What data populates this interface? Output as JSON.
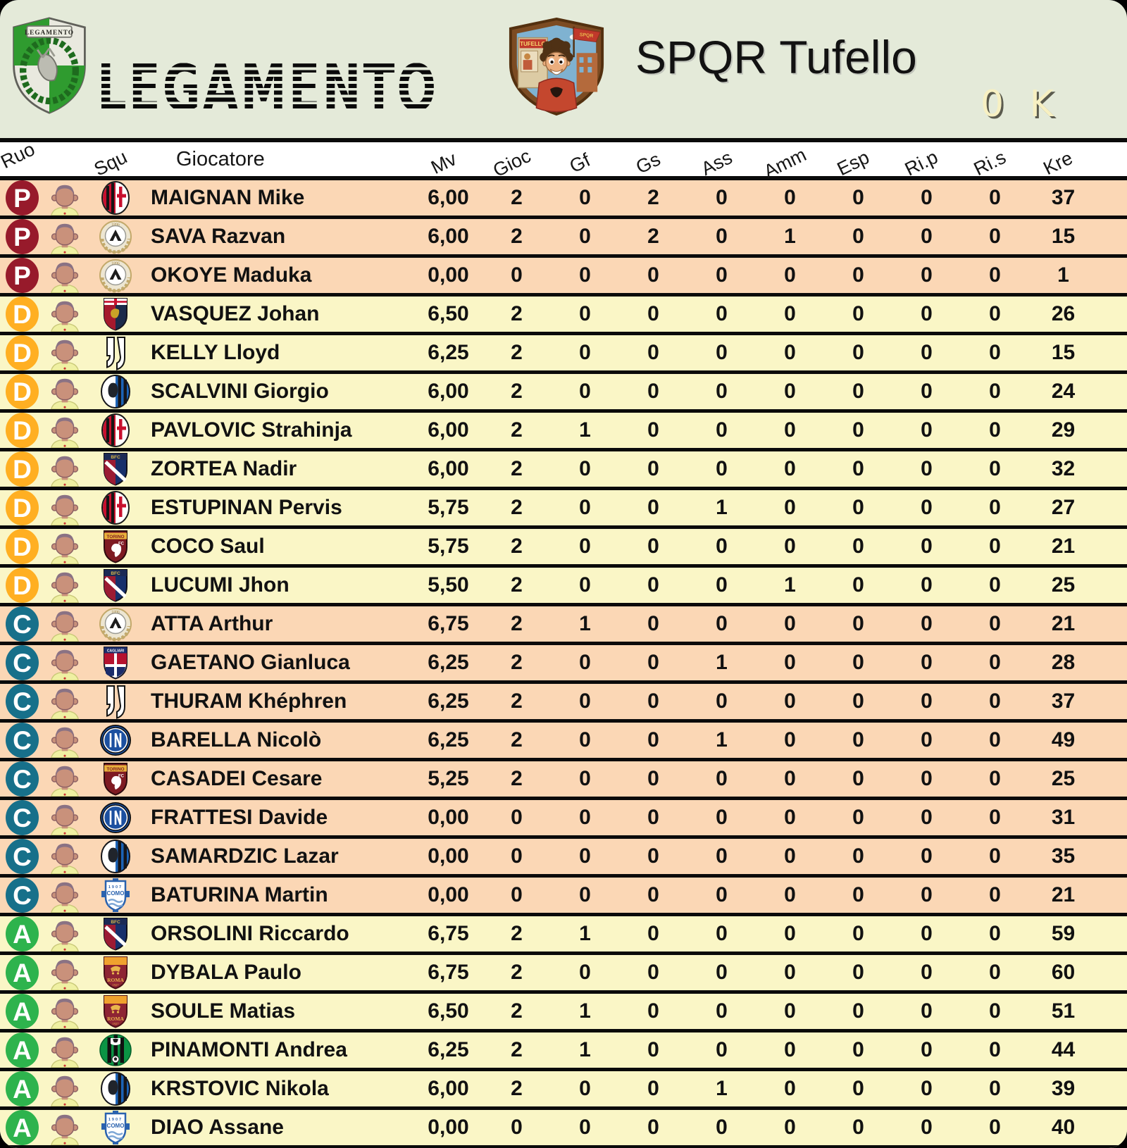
{
  "header": {
    "league_name": "LEGAMENTO",
    "league_crest_banner": "LEGAMENTO",
    "team_name": "SPQR Tufello",
    "credits": "0 K",
    "tufello_sign": "TUFELLO",
    "tufello_flag": "SPQR"
  },
  "colors": {
    "header_bg": "#E4EAD9",
    "row_peach": "#FBD7B5",
    "row_yellow": "#FAF6C6",
    "separator": "#0A0A0A",
    "role_P": "#971A2B",
    "role_D": "#FFAF22",
    "role_C": "#17708A",
    "role_A": "#2EB34D",
    "credits_text": "#F7F0C2"
  },
  "table": {
    "columns": [
      {
        "key": "ruo",
        "label": "Ruo"
      },
      {
        "key": "squ",
        "label": "Squ"
      },
      {
        "key": "giocatore",
        "label": "Giocatore"
      },
      {
        "key": "mv",
        "label": "Mv"
      },
      {
        "key": "gioc",
        "label": "Gioc"
      },
      {
        "key": "gf",
        "label": "Gf"
      },
      {
        "key": "gs",
        "label": "Gs"
      },
      {
        "key": "ass",
        "label": "Ass"
      },
      {
        "key": "amm",
        "label": "Amm"
      },
      {
        "key": "esp",
        "label": "Esp"
      },
      {
        "key": "rip",
        "label": "Ri.p"
      },
      {
        "key": "ris",
        "label": "Ri.s"
      },
      {
        "key": "kre",
        "label": "Kre"
      }
    ],
    "rows": [
      {
        "role": "P",
        "team": "milan",
        "name": "MAIGNAN Mike",
        "mv": "6,00",
        "gioc": "2",
        "gf": "0",
        "gs": "2",
        "ass": "0",
        "amm": "0",
        "esp": "0",
        "rip": "0",
        "ris": "0",
        "kre": "37"
      },
      {
        "role": "P",
        "team": "udinese",
        "name": "SAVA Razvan",
        "mv": "6,00",
        "gioc": "2",
        "gf": "0",
        "gs": "2",
        "ass": "0",
        "amm": "1",
        "esp": "0",
        "rip": "0",
        "ris": "0",
        "kre": "15"
      },
      {
        "role": "P",
        "team": "udinese",
        "name": "OKOYE Maduka",
        "mv": "0,00",
        "gioc": "0",
        "gf": "0",
        "gs": "0",
        "ass": "0",
        "amm": "0",
        "esp": "0",
        "rip": "0",
        "ris": "0",
        "kre": "1"
      },
      {
        "role": "D",
        "team": "genoa",
        "name": "VASQUEZ Johan",
        "mv": "6,50",
        "gioc": "2",
        "gf": "0",
        "gs": "0",
        "ass": "0",
        "amm": "0",
        "esp": "0",
        "rip": "0",
        "ris": "0",
        "kre": "26"
      },
      {
        "role": "D",
        "team": "juventus",
        "name": "KELLY Lloyd",
        "mv": "6,25",
        "gioc": "2",
        "gf": "0",
        "gs": "0",
        "ass": "0",
        "amm": "0",
        "esp": "0",
        "rip": "0",
        "ris": "0",
        "kre": "15"
      },
      {
        "role": "D",
        "team": "atalanta",
        "name": "SCALVINI Giorgio",
        "mv": "6,00",
        "gioc": "2",
        "gf": "0",
        "gs": "0",
        "ass": "0",
        "amm": "0",
        "esp": "0",
        "rip": "0",
        "ris": "0",
        "kre": "24"
      },
      {
        "role": "D",
        "team": "milan",
        "name": "PAVLOVIC Strahinja",
        "mv": "6,00",
        "gioc": "2",
        "gf": "1",
        "gs": "0",
        "ass": "0",
        "amm": "0",
        "esp": "0",
        "rip": "0",
        "ris": "0",
        "kre": "29"
      },
      {
        "role": "D",
        "team": "bologna",
        "name": "ZORTEA Nadir",
        "mv": "6,00",
        "gioc": "2",
        "gf": "0",
        "gs": "0",
        "ass": "0",
        "amm": "0",
        "esp": "0",
        "rip": "0",
        "ris": "0",
        "kre": "32"
      },
      {
        "role": "D",
        "team": "milan",
        "name": "ESTUPINAN Pervis",
        "mv": "5,75",
        "gioc": "2",
        "gf": "0",
        "gs": "0",
        "ass": "1",
        "amm": "0",
        "esp": "0",
        "rip": "0",
        "ris": "0",
        "kre": "27"
      },
      {
        "role": "D",
        "team": "torino",
        "name": "COCO Saul",
        "mv": "5,75",
        "gioc": "2",
        "gf": "0",
        "gs": "0",
        "ass": "0",
        "amm": "0",
        "esp": "0",
        "rip": "0",
        "ris": "0",
        "kre": "21"
      },
      {
        "role": "D",
        "team": "bologna",
        "name": "LUCUMI Jhon",
        "mv": "5,50",
        "gioc": "2",
        "gf": "0",
        "gs": "0",
        "ass": "0",
        "amm": "1",
        "esp": "0",
        "rip": "0",
        "ris": "0",
        "kre": "25"
      },
      {
        "role": "C",
        "team": "udinese",
        "name": "ATTA Arthur",
        "mv": "6,75",
        "gioc": "2",
        "gf": "1",
        "gs": "0",
        "ass": "0",
        "amm": "0",
        "esp": "0",
        "rip": "0",
        "ris": "0",
        "kre": "21"
      },
      {
        "role": "C",
        "team": "cagliari",
        "name": "GAETANO Gianluca",
        "mv": "6,25",
        "gioc": "2",
        "gf": "0",
        "gs": "0",
        "ass": "1",
        "amm": "0",
        "esp": "0",
        "rip": "0",
        "ris": "0",
        "kre": "28"
      },
      {
        "role": "C",
        "team": "juventus",
        "name": "THURAM Khéphren",
        "mv": "6,25",
        "gioc": "2",
        "gf": "0",
        "gs": "0",
        "ass": "0",
        "amm": "0",
        "esp": "0",
        "rip": "0",
        "ris": "0",
        "kre": "37"
      },
      {
        "role": "C",
        "team": "inter",
        "name": "BARELLA Nicolò",
        "mv": "6,25",
        "gioc": "2",
        "gf": "0",
        "gs": "0",
        "ass": "1",
        "amm": "0",
        "esp": "0",
        "rip": "0",
        "ris": "0",
        "kre": "49"
      },
      {
        "role": "C",
        "team": "torino",
        "name": "CASADEI Cesare",
        "mv": "5,25",
        "gioc": "2",
        "gf": "0",
        "gs": "0",
        "ass": "0",
        "amm": "0",
        "esp": "0",
        "rip": "0",
        "ris": "0",
        "kre": "25"
      },
      {
        "role": "C",
        "team": "inter",
        "name": "FRATTESI Davide",
        "mv": "0,00",
        "gioc": "0",
        "gf": "0",
        "gs": "0",
        "ass": "0",
        "amm": "0",
        "esp": "0",
        "rip": "0",
        "ris": "0",
        "kre": "31"
      },
      {
        "role": "C",
        "team": "atalanta",
        "name": "SAMARDZIC Lazar",
        "mv": "0,00",
        "gioc": "0",
        "gf": "0",
        "gs": "0",
        "ass": "0",
        "amm": "0",
        "esp": "0",
        "rip": "0",
        "ris": "0",
        "kre": "35"
      },
      {
        "role": "C",
        "team": "como",
        "name": "BATURINA Martin",
        "mv": "0,00",
        "gioc": "0",
        "gf": "0",
        "gs": "0",
        "ass": "0",
        "amm": "0",
        "esp": "0",
        "rip": "0",
        "ris": "0",
        "kre": "21"
      },
      {
        "role": "A",
        "team": "bologna",
        "name": "ORSOLINI Riccardo",
        "mv": "6,75",
        "gioc": "2",
        "gf": "1",
        "gs": "0",
        "ass": "0",
        "amm": "0",
        "esp": "0",
        "rip": "0",
        "ris": "0",
        "kre": "59"
      },
      {
        "role": "A",
        "team": "roma",
        "name": "DYBALA Paulo",
        "mv": "6,75",
        "gioc": "2",
        "gf": "0",
        "gs": "0",
        "ass": "0",
        "amm": "0",
        "esp": "0",
        "rip": "0",
        "ris": "0",
        "kre": "60"
      },
      {
        "role": "A",
        "team": "roma",
        "name": "SOULE Matias",
        "mv": "6,50",
        "gioc": "2",
        "gf": "1",
        "gs": "0",
        "ass": "0",
        "amm": "0",
        "esp": "0",
        "rip": "0",
        "ris": "0",
        "kre": "51"
      },
      {
        "role": "A",
        "team": "sassuolo",
        "name": "PINAMONTI Andrea",
        "mv": "6,25",
        "gioc": "2",
        "gf": "1",
        "gs": "0",
        "ass": "0",
        "amm": "0",
        "esp": "0",
        "rip": "0",
        "ris": "0",
        "kre": "44"
      },
      {
        "role": "A",
        "team": "atalanta",
        "name": "KRSTOVIC Nikola",
        "mv": "6,00",
        "gioc": "2",
        "gf": "0",
        "gs": "0",
        "ass": "1",
        "amm": "0",
        "esp": "0",
        "rip": "0",
        "ris": "0",
        "kre": "39"
      },
      {
        "role": "A",
        "team": "como",
        "name": "DIAO Assane",
        "mv": "0,00",
        "gioc": "0",
        "gf": "0",
        "gs": "0",
        "ass": "0",
        "amm": "0",
        "esp": "0",
        "rip": "0",
        "ris": "0",
        "kre": "40"
      }
    ]
  }
}
